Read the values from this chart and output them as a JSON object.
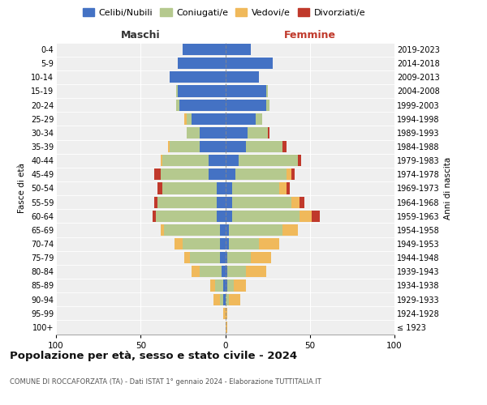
{
  "age_groups": [
    "100+",
    "95-99",
    "90-94",
    "85-89",
    "80-84",
    "75-79",
    "70-74",
    "65-69",
    "60-64",
    "55-59",
    "50-54",
    "45-49",
    "40-44",
    "35-39",
    "30-34",
    "25-29",
    "20-24",
    "15-19",
    "10-14",
    "5-9",
    "0-4"
  ],
  "birth_years": [
    "≤ 1923",
    "1924-1928",
    "1929-1933",
    "1934-1938",
    "1939-1943",
    "1944-1948",
    "1949-1953",
    "1954-1958",
    "1959-1963",
    "1964-1968",
    "1969-1973",
    "1974-1978",
    "1979-1983",
    "1984-1988",
    "1989-1993",
    "1994-1998",
    "1999-2003",
    "2004-2008",
    "2009-2013",
    "2014-2018",
    "2019-2023"
  ],
  "colors": {
    "celibe": "#4472c4",
    "coniugato": "#b5c98e",
    "vedovo": "#f0b95b",
    "divorziato": "#c0392b"
  },
  "maschi": {
    "celibe": [
      0,
      0,
      1,
      1,
      2,
      3,
      3,
      3,
      5,
      5,
      5,
      10,
      10,
      15,
      15,
      20,
      27,
      28,
      33,
      28,
      25
    ],
    "coniugato": [
      0,
      0,
      2,
      5,
      13,
      18,
      22,
      33,
      36,
      35,
      32,
      28,
      27,
      18,
      8,
      3,
      2,
      1,
      0,
      0,
      0
    ],
    "vedovo": [
      0,
      1,
      4,
      3,
      5,
      3,
      5,
      2,
      0,
      0,
      0,
      0,
      1,
      1,
      0,
      1,
      0,
      0,
      0,
      0,
      0
    ],
    "divorziato": [
      0,
      0,
      0,
      0,
      0,
      0,
      0,
      0,
      2,
      2,
      3,
      4,
      0,
      0,
      0,
      0,
      0,
      0,
      0,
      0,
      0
    ]
  },
  "femmine": {
    "celibe": [
      0,
      0,
      0,
      1,
      1,
      1,
      2,
      2,
      4,
      4,
      4,
      6,
      8,
      12,
      13,
      18,
      24,
      24,
      20,
      28,
      15
    ],
    "coniugato": [
      0,
      0,
      2,
      4,
      11,
      14,
      18,
      32,
      40,
      35,
      28,
      30,
      35,
      22,
      12,
      4,
      2,
      1,
      0,
      0,
      0
    ],
    "vedovo": [
      1,
      1,
      7,
      7,
      12,
      12,
      12,
      9,
      7,
      5,
      4,
      3,
      0,
      0,
      0,
      0,
      0,
      0,
      0,
      0,
      0
    ],
    "divorziato": [
      0,
      0,
      0,
      0,
      0,
      0,
      0,
      0,
      5,
      3,
      2,
      2,
      2,
      2,
      1,
      0,
      0,
      0,
      0,
      0,
      0
    ]
  },
  "title": "Popolazione per età, sesso e stato civile - 2024",
  "subtitle": "COMUNE DI ROCCAFORZATA (TA) - Dati ISTAT 1° gennaio 2024 - Elaborazione TUTTITALIA.IT",
  "legend_labels": [
    "Celibi/Nubili",
    "Coniugati/e",
    "Vedovi/e",
    "Divorziati/e"
  ],
  "label_maschi": "Maschi",
  "label_femmine": "Femmine",
  "ylabel_left": "Fasce di età",
  "ylabel_right": "Anni di nascita",
  "xlim": 100,
  "bg_color": "#ffffff",
  "axes_bg": "#efefef"
}
